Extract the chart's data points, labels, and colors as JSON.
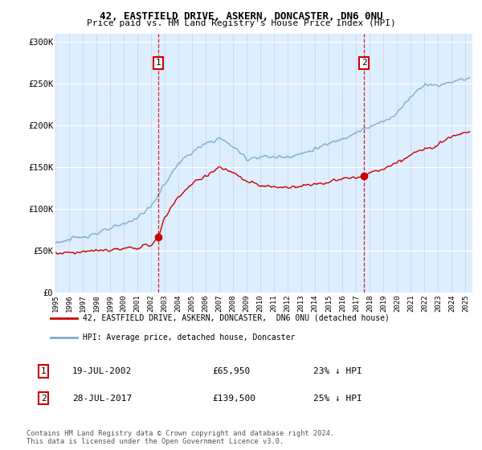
{
  "title1": "42, EASTFIELD DRIVE, ASKERN, DONCASTER, DN6 0NU",
  "title2": "Price paid vs. HM Land Registry's House Price Index (HPI)",
  "ylabel_ticks": [
    "£0",
    "£50K",
    "£100K",
    "£150K",
    "£200K",
    "£250K",
    "£300K"
  ],
  "ytick_vals": [
    0,
    50000,
    100000,
    150000,
    200000,
    250000,
    300000
  ],
  "ylim": [
    0,
    310000
  ],
  "xlim_start": 1995.0,
  "xlim_end": 2025.5,
  "sale1_date": 2002.54,
  "sale1_price": 65950,
  "sale2_date": 2017.57,
  "sale2_price": 139500,
  "hpi_color": "#7aadd4",
  "price_color": "#cc0000",
  "bg_color": "#ddeeff",
  "legend_label1": "42, EASTFIELD DRIVE, ASKERN, DONCASTER,  DN6 0NU (detached house)",
  "legend_label2": "HPI: Average price, detached house, Doncaster",
  "annotation1_label": "1",
  "annotation2_label": "2",
  "note1_num": "1",
  "note1_date": "19-JUL-2002",
  "note1_price": "£65,950",
  "note1_pct": "23% ↓ HPI",
  "note2_num": "2",
  "note2_date": "28-JUL-2017",
  "note2_price": "£139,500",
  "note2_pct": "25% ↓ HPI",
  "footer": "Contains HM Land Registry data © Crown copyright and database right 2024.\nThis data is licensed under the Open Government Licence v3.0.",
  "hpi_anchors_x": [
    1995,
    1996,
    1997,
    1998,
    1999,
    2000,
    2001,
    2002,
    2003,
    2004,
    2005,
    2006,
    2007,
    2008,
    2009,
    2010,
    2011,
    2012,
    2013,
    2014,
    2015,
    2016,
    2017,
    2018,
    2019,
    2020,
    2021,
    2022,
    2023,
    2024,
    2025.3
  ],
  "hpi_anchors_y": [
    60000,
    63000,
    67000,
    71000,
    76000,
    82000,
    90000,
    103000,
    130000,
    155000,
    168000,
    178000,
    185000,
    175000,
    160000,
    163000,
    162000,
    163000,
    166000,
    172000,
    178000,
    185000,
    192000,
    198000,
    205000,
    215000,
    235000,
    250000,
    248000,
    253000,
    257000
  ],
  "price_anchors_x": [
    1995,
    1996,
    1997,
    1998,
    1999,
    2000,
    2001,
    2002,
    2002.54,
    2003,
    2004,
    2005,
    2006,
    2007,
    2008,
    2009,
    2010,
    2011,
    2012,
    2013,
    2014,
    2015,
    2016,
    2017,
    2017.57,
    2018,
    2019,
    2020,
    2021,
    2022,
    2023,
    2024,
    2025.3
  ],
  "price_anchors_y": [
    47000,
    48000,
    49000,
    50000,
    51000,
    52000,
    54000,
    57000,
    65950,
    90000,
    115000,
    130000,
    140000,
    150000,
    143000,
    133000,
    128000,
    126000,
    126000,
    128000,
    130000,
    132000,
    136000,
    138000,
    139500,
    143000,
    148000,
    155000,
    165000,
    172000,
    178000,
    188000,
    193000
  ]
}
